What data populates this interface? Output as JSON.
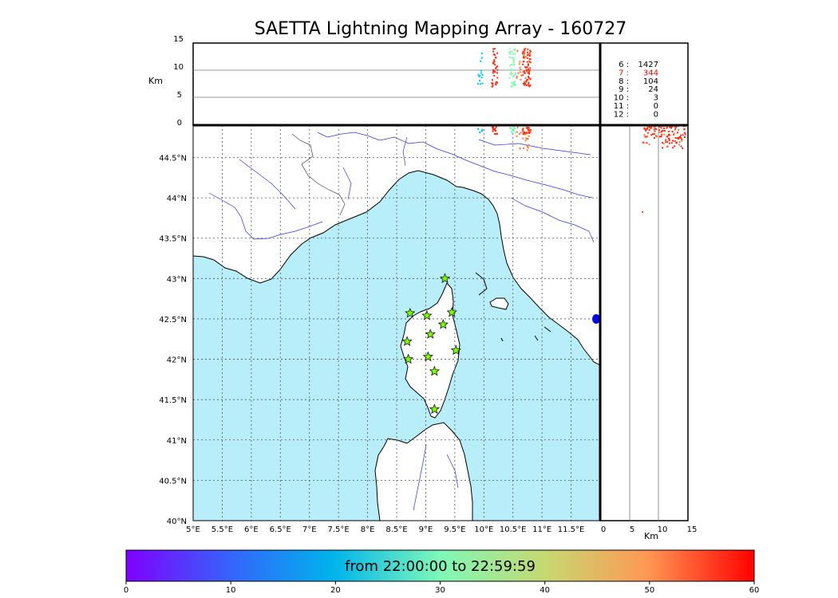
{
  "title": "SAETTA Lightning Mapping Array - 160727",
  "altitude_panel": {
    "ylabel": "Km",
    "y_ticks": [
      "15",
      "10",
      "5",
      "0"
    ],
    "station_counts": [
      {
        "n": "6 :",
        "count": "1427",
        "color": "#000000"
      },
      {
        "n": "7 :",
        "count": "344",
        "color": "#ff0000"
      },
      {
        "n": "8 :",
        "count": "104",
        "color": "#000000"
      },
      {
        "n": "9 :",
        "count": "24",
        "color": "#000000"
      },
      {
        "n": "10 :",
        "count": "3",
        "color": "#000000"
      },
      {
        "n": "11 :",
        "count": "0",
        "color": "#000000"
      },
      {
        "n": "12 :",
        "count": "0",
        "color": "#000000"
      }
    ]
  },
  "side_panel": {
    "xlabel": "Km",
    "x_ticks": [
      "0",
      "5",
      "10",
      "15"
    ]
  },
  "map": {
    "lon_ticks": [
      "5°E",
      "5.5°E",
      "6°E",
      "6.5°E",
      "7°E",
      "7.5°E",
      "8°E",
      "8.5°E",
      "9°E",
      "9.5°E",
      "10°E",
      "10.5°E",
      "11°E",
      "11.5°E"
    ],
    "lat_ticks": [
      "44.5°N",
      "44°N",
      "43.5°N",
      "43°N",
      "42.5°N",
      "42°N",
      "41.5°N",
      "41°N",
      "40.5°N",
      "40°N"
    ],
    "sea_color": "#b8eefa",
    "station_marker": "star-icon",
    "station_color": "#7cfc00",
    "stations": [
      {
        "lon": 9.33,
        "lat": 43.0
      },
      {
        "lon": 8.73,
        "lat": 42.57
      },
      {
        "lon": 9.02,
        "lat": 42.54
      },
      {
        "lon": 9.45,
        "lat": 42.58
      },
      {
        "lon": 9.3,
        "lat": 42.43
      },
      {
        "lon": 9.08,
        "lat": 42.31
      },
      {
        "lon": 8.68,
        "lat": 42.22
      },
      {
        "lon": 9.52,
        "lat": 42.11
      },
      {
        "lon": 9.04,
        "lat": 42.03
      },
      {
        "lon": 8.7,
        "lat": 42.0
      },
      {
        "lon": 9.15,
        "lat": 41.85
      },
      {
        "lon": 9.15,
        "lat": 41.38
      }
    ]
  },
  "colorbar": {
    "label": "from 22:00:00 to 22:59:59",
    "ticks": [
      "0",
      "10",
      "20",
      "30",
      "40",
      "50",
      "60"
    ]
  }
}
